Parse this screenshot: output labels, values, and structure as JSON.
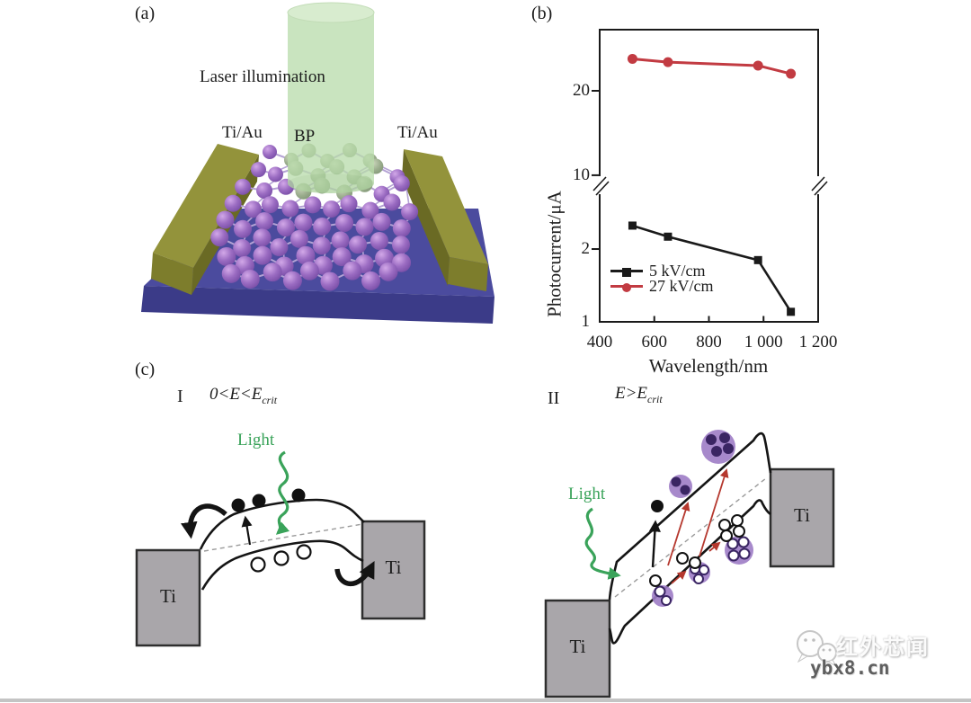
{
  "figure": {
    "panel_a": {
      "label": "(a)",
      "laser_label": "Laser illumination",
      "left_electrode_label": "Ti/Au",
      "material_label": "BP",
      "right_electrode_label": "Ti/Au"
    },
    "panel_b": {
      "label": "(b)"
    },
    "panel_c": {
      "label": "(c)",
      "regime1": {
        "numeral": "I",
        "equation_main": "0<E<E",
        "equation_sub": "crit",
        "light_label": "Light",
        "left_electrode_label": "Ti",
        "right_electrode_label": "Ti"
      },
      "regime2": {
        "numeral": "II",
        "equation_main": "E>E",
        "equation_sub": "crit",
        "light_label": "Light",
        "left_electrode_label": "Ti",
        "right_electrode_label": "Ti"
      }
    }
  },
  "watermark": {
    "name": "红外芯闻",
    "site": "ybx8.cn"
  },
  "chart_data": {
    "type": "line",
    "title": "",
    "xlabel": "Wavelength/nm",
    "ylabel": "Photocurrent/μA",
    "xlim": [
      400,
      1200
    ],
    "grid": false,
    "axis_break": true,
    "legend_position": "lower-left",
    "x_ticks": [
      "400",
      "600",
      "800",
      "1 000",
      "1 200"
    ],
    "x_tick_values": [
      400,
      600,
      800,
      1000,
      1200
    ],
    "y_ticks": [
      {
        "label": "20",
        "value": 20
      },
      {
        "label": "10",
        "value": 10
      },
      {
        "label": "2",
        "value": 2
      },
      {
        "label": "1",
        "value": 1
      }
    ],
    "x": [
      520,
      650,
      980,
      1100
    ],
    "series": [
      {
        "name": "5 kV/cm",
        "color": "#1a1a1a",
        "marker": "square",
        "values": [
          2.5,
          2.25,
          1.8,
          1.1
        ]
      },
      {
        "name": "27 kV/cm",
        "color": "#c23b42",
        "marker": "circle",
        "values": [
          26,
          25.3,
          24.6,
          23
        ]
      }
    ]
  }
}
